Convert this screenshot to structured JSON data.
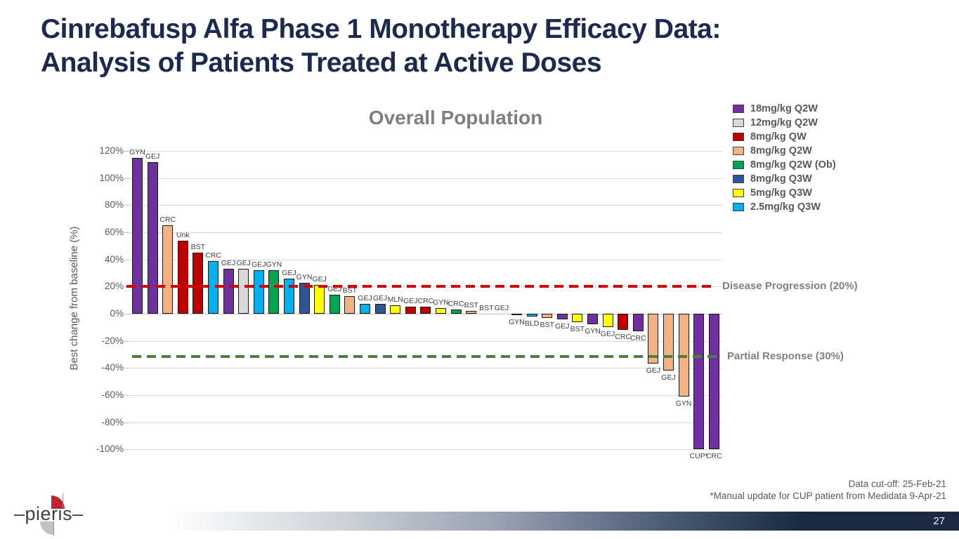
{
  "slide": {
    "title_line1": "Cinrebafusp Alfa Phase 1 Monotherapy Efficacy Data:",
    "title_line2": "Analysis of Patients Treated at Active Doses",
    "footer_note1": "Data cut-off: 25-Feb-21",
    "footer_note2": "*Manual update for CUP patient from Medidata 9-Apr-21",
    "page_number": "27",
    "logo_text": "–pieris–",
    "accent_navy": "#1b2a4e"
  },
  "chart_data": {
    "type": "bar",
    "title": "Overall Population",
    "ylabel": "Best change from baseline (%)",
    "ylim": [
      -100,
      120
    ],
    "ytick_step": 20,
    "grid": true,
    "legend_position": "top-right",
    "legend": [
      {
        "label": "18mg/kg Q2W",
        "color": "#7030a0"
      },
      {
        "label": "12mg/kg Q2W",
        "color": "#d9d9d9"
      },
      {
        "label": "8mg/kg QW",
        "color": "#c00000"
      },
      {
        "label": "8mg/kg Q2W",
        "color": "#f4b183"
      },
      {
        "label": "8mg/kg Q2W (Ob)",
        "color": "#00a650"
      },
      {
        "label": "8mg/kg Q3W",
        "color": "#2e5597"
      },
      {
        "label": "5mg/kg Q3W",
        "color": "#ffff00"
      },
      {
        "label": "2.5mg/kg Q3W",
        "color": "#00b0f0"
      }
    ],
    "reference_lines": [
      {
        "label": "Disease Progression (20%)",
        "value": 20,
        "color": "#d40000"
      },
      {
        "label": "Partial Response (30%)",
        "value": -30,
        "color": "#4e7f3c"
      }
    ],
    "bars": [
      {
        "label": "GYN",
        "value": 115,
        "group": "18mg/kg Q2W"
      },
      {
        "label": "GEJ",
        "value": 112,
        "group": "18mg/kg Q2W"
      },
      {
        "label": "CRC",
        "value": 65,
        "group": "8mg/kg Q2W"
      },
      {
        "label": "Unk",
        "value": 54,
        "group": "8mg/kg QW"
      },
      {
        "label": "BST",
        "value": 45,
        "group": "8mg/kg QW"
      },
      {
        "label": "CRC",
        "value": 39,
        "group": "2.5mg/kg Q3W"
      },
      {
        "label": "GEJ",
        "value": 33,
        "group": "18mg/kg Q2W"
      },
      {
        "label": "GEJ",
        "value": 33,
        "group": "12mg/kg Q2W"
      },
      {
        "label": "GEJ",
        "value": 32,
        "group": "2.5mg/kg Q3W"
      },
      {
        "label": "GYN",
        "value": 32,
        "group": "8mg/kg Q2W (Ob)"
      },
      {
        "label": "GEJ",
        "value": 26,
        "group": "2.5mg/kg Q3W"
      },
      {
        "label": "GYN",
        "value": 23,
        "group": "8mg/kg Q3W"
      },
      {
        "label": "GEJ",
        "value": 21,
        "group": "5mg/kg Q3W"
      },
      {
        "label": "GEJ",
        "value": 14,
        "group": "8mg/kg Q2W (Ob)"
      },
      {
        "label": "BST",
        "value": 13,
        "group": "8mg/kg Q2W"
      },
      {
        "label": "GEJ",
        "value": 7,
        "group": "2.5mg/kg Q3W"
      },
      {
        "label": "GEJ",
        "value": 7,
        "group": "8mg/kg Q3W"
      },
      {
        "label": "MLN",
        "value": 6,
        "group": "5mg/kg Q3W"
      },
      {
        "label": "GEJ",
        "value": 5,
        "group": "8mg/kg QW"
      },
      {
        "label": "CRC",
        "value": 5,
        "group": "8mg/kg QW"
      },
      {
        "label": "GYN",
        "value": 4,
        "group": "5mg/kg Q3W"
      },
      {
        "label": "CRC",
        "value": 3,
        "group": "8mg/kg Q2W (Ob)"
      },
      {
        "label": "BST",
        "value": 2,
        "group": "8mg/kg Q2W"
      },
      {
        "label": "BST",
        "value": 0,
        "group": null
      },
      {
        "label": "GEJ",
        "value": 0,
        "group": null
      },
      {
        "label": "GYN",
        "value": -1,
        "group": "5mg/kg Q3W"
      },
      {
        "label": "BLD",
        "value": -2,
        "group": "2.5mg/kg Q3W"
      },
      {
        "label": "BST",
        "value": -3,
        "group": "8mg/kg Q2W"
      },
      {
        "label": "GEJ",
        "value": -4,
        "group": "18mg/kg Q2W"
      },
      {
        "label": "BST",
        "value": -6,
        "group": "5mg/kg Q3W"
      },
      {
        "label": "GYN",
        "value": -8,
        "group": "18mg/kg Q2W"
      },
      {
        "label": "GEJ",
        "value": -10,
        "group": "5mg/kg Q3W"
      },
      {
        "label": "CRC",
        "value": -12,
        "group": "8mg/kg QW"
      },
      {
        "label": "CRC",
        "value": -13,
        "group": "18mg/kg Q2W"
      },
      {
        "label": "GEJ",
        "value": -37,
        "group": "8mg/kg Q2W"
      },
      {
        "label": "GEJ",
        "value": -42,
        "group": "8mg/kg Q2W"
      },
      {
        "label": "GYN",
        "value": -61,
        "group": "8mg/kg Q2W"
      },
      {
        "label": "CUP*",
        "value": -100,
        "group": "18mg/kg Q2W"
      },
      {
        "label": "CRC",
        "value": -100,
        "group": "18mg/kg Q2W"
      }
    ]
  }
}
